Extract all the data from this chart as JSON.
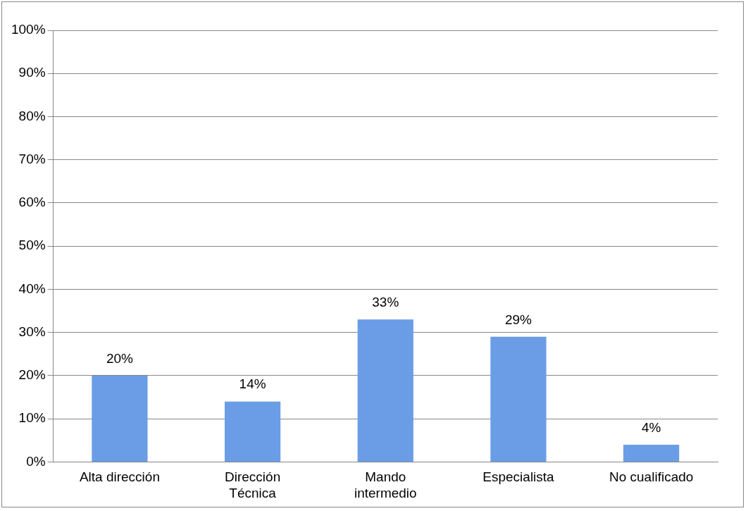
{
  "chart_data": {
    "type": "bar",
    "categories": [
      "Alta dirección",
      "Dirección Técnica",
      "Mando intermedio",
      "Especialista",
      "No cualificado"
    ],
    "values": [
      20,
      14,
      33,
      29,
      4
    ],
    "value_labels": [
      "20%",
      "14%",
      "33%",
      "29%",
      "4%"
    ],
    "color": "#6a9de6",
    "ylim": [
      0,
      100
    ],
    "yticks": [
      {
        "value": 0,
        "label": "0%"
      },
      {
        "value": 10,
        "label": "10%"
      },
      {
        "value": 20,
        "label": "20%"
      },
      {
        "value": 30,
        "label": "30%"
      },
      {
        "value": 40,
        "label": "40%"
      },
      {
        "value": 50,
        "label": "50%"
      },
      {
        "value": 60,
        "label": "60%"
      },
      {
        "value": 70,
        "label": "70%"
      },
      {
        "value": 80,
        "label": "80%"
      },
      {
        "value": 90,
        "label": "90%"
      },
      {
        "value": 100,
        "label": "100%"
      }
    ],
    "grid": "y",
    "legend": false
  }
}
